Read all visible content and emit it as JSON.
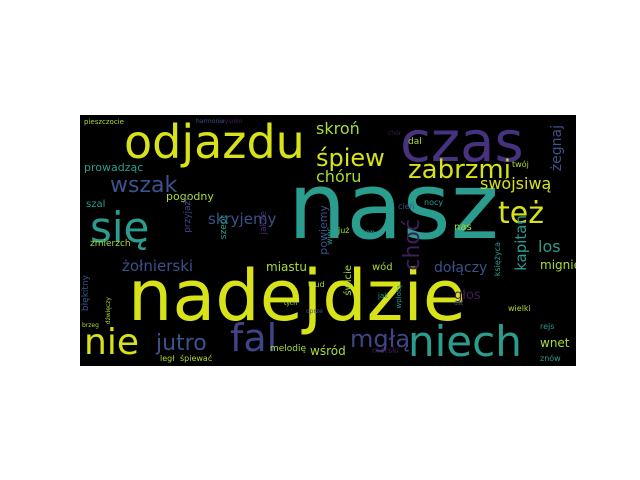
{
  "palette": {
    "yellow": "#d7e219",
    "lime": "#a8db34",
    "green": "#6ccd5a",
    "teal": "#2a9d8f",
    "cyan": "#22a884",
    "blue": "#3b528b",
    "indigo": "#414487",
    "purple": "#46327e",
    "dark": "#3e1f5a"
  },
  "words": [
    {
      "text": "nasz",
      "weight": 100,
      "color": "teal"
    },
    {
      "text": "nadejdzie",
      "weight": 78,
      "color": "yellow"
    },
    {
      "text": "czas",
      "weight": 62,
      "color": "purple"
    },
    {
      "text": "odjazdu",
      "weight": 55,
      "color": "yellow"
    },
    {
      "text": "się",
      "weight": 52,
      "color": "teal"
    },
    {
      "text": "niech",
      "weight": 50,
      "color": "teal"
    },
    {
      "text": "fal",
      "weight": 44,
      "color": "indigo"
    },
    {
      "text": "nie",
      "weight": 43,
      "color": "yellow"
    },
    {
      "text": "też",
      "weight": 34,
      "color": "yellow"
    },
    {
      "text": "śpiew",
      "weight": 32,
      "color": "yellow"
    },
    {
      "text": "zabrzmi",
      "weight": 32,
      "color": "yellow"
    },
    {
      "text": "mgłą",
      "weight": 30,
      "color": "indigo"
    },
    {
      "text": "jutro",
      "weight": 28,
      "color": "blue"
    },
    {
      "text": "wszak",
      "weight": 26,
      "color": "blue"
    },
    {
      "text": "choć",
      "weight": 25,
      "color": "dark"
    },
    {
      "text": "skroń",
      "weight": 22,
      "color": "lime"
    },
    {
      "text": "chóru",
      "weight": 22,
      "color": "lime"
    },
    {
      "text": "skryjemy",
      "weight": 21,
      "color": "blue"
    },
    {
      "text": "swójsiwą",
      "weight": 20,
      "color": "yellow"
    },
    {
      "text": "kapitan",
      "weight": 20,
      "color": "teal"
    },
    {
      "text": "los",
      "weight": 19,
      "color": "teal"
    },
    {
      "text": "żołnierski",
      "weight": 19,
      "color": "blue"
    },
    {
      "text": "dołączy",
      "weight": 17,
      "color": "blue"
    },
    {
      "text": "miastu",
      "weight": 16,
      "color": "lime"
    },
    {
      "text": "żegnaj",
      "weight": 16,
      "color": "blue"
    },
    {
      "text": "głos",
      "weight": 15,
      "color": "dark"
    },
    {
      "text": "wnet",
      "weight": 14,
      "color": "lime"
    },
    {
      "text": "mignie",
      "weight": 14,
      "color": "lime"
    },
    {
      "text": "powiemy",
      "weight": 13,
      "color": "blue"
    },
    {
      "text": "wśród",
      "weight": 13,
      "color": "lime"
    },
    {
      "text": "prowadząc",
      "weight": 12,
      "color": "teal"
    },
    {
      "text": "pogodny",
      "weight": 12,
      "color": "lime"
    },
    {
      "text": "szal",
      "weight": 12,
      "color": "teal"
    },
    {
      "text": "zmierzch",
      "weight": 11,
      "color": "lime"
    },
    {
      "text": "dal",
      "weight": 11,
      "color": "lime"
    },
    {
      "text": "wód",
      "weight": 11,
      "color": "lime"
    },
    {
      "text": "nas",
      "weight": 11,
      "color": "lime"
    },
    {
      "text": "świcie",
      "weight": 10,
      "color": "lime"
    },
    {
      "text": "jakże",
      "weight": 10,
      "color": "purple"
    },
    {
      "text": "szept",
      "weight": 10,
      "color": "teal"
    },
    {
      "text": "melodię",
      "weight": 10,
      "color": "lime"
    },
    {
      "text": "błękitny",
      "weight": 10,
      "color": "blue"
    },
    {
      "text": "przyjaźń",
      "weight": 9,
      "color": "indigo"
    },
    {
      "text": "legł",
      "weight": 9,
      "color": "lime"
    },
    {
      "text": "śpiewać",
      "weight": 9,
      "color": "lime"
    },
    {
      "text": "twój",
      "weight": 9,
      "color": "lime"
    },
    {
      "text": "cień",
      "weight": 9,
      "color": "blue"
    },
    {
      "text": "nocy",
      "weight": 9,
      "color": "teal"
    },
    {
      "text": "już",
      "weight": 9,
      "color": "lime"
    },
    {
      "text": "ten",
      "weight": 9,
      "color": "teal"
    },
    {
      "text": "księżyca",
      "weight": 9,
      "color": "teal"
    },
    {
      "text": "więc",
      "weight": 8,
      "color": "teal"
    },
    {
      "text": "trud",
      "weight": 9,
      "color": "lime"
    },
    {
      "text": "morski",
      "weight": 9,
      "color": "dark"
    },
    {
      "text": "rejs",
      "weight": 9,
      "color": "teal"
    },
    {
      "text": "znów",
      "weight": 9,
      "color": "teal"
    },
    {
      "text": "wielki",
      "weight": 9,
      "color": "lime"
    },
    {
      "text": "jak",
      "weight": 8,
      "color": "teal"
    },
    {
      "text": "wplotą",
      "weight": 8,
      "color": "teal"
    },
    {
      "text": "pieszczocie",
      "weight": 8,
      "color": "lime"
    },
    {
      "text": "harmonia",
      "weight": 7,
      "color": "blue"
    },
    {
      "text": "wysoko",
      "weight": 7,
      "color": "dark"
    },
    {
      "text": "chór",
      "weight": 7,
      "color": "dark"
    },
    {
      "text": "dźwięczy",
      "weight": 7,
      "color": "lime"
    },
    {
      "text": "brzeg",
      "weight": 7,
      "color": "lime"
    },
    {
      "text": "tych",
      "weight": 7,
      "color": "lime"
    },
    {
      "text": "oprze",
      "weight": 7,
      "color": "blue"
    },
    {
      "text": "ust",
      "weight": 7,
      "color": "blue"
    }
  ]
}
